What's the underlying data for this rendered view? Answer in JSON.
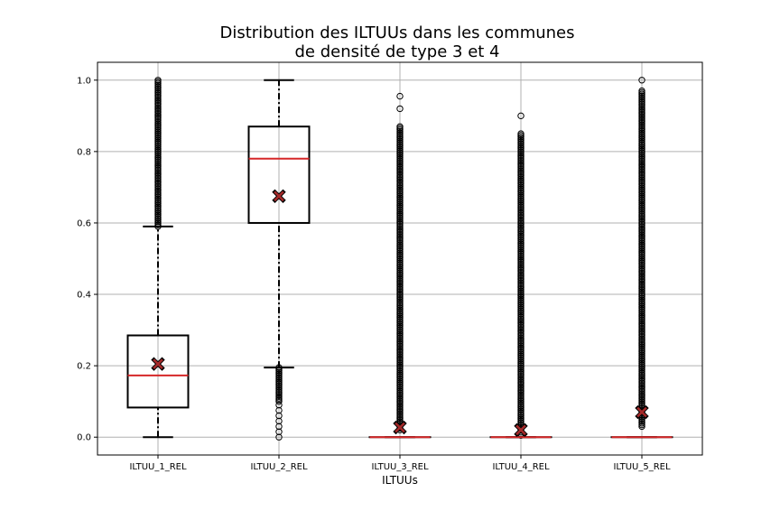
{
  "chart_data": {
    "type": "box",
    "title_lines": [
      "Distribution des ILTUUs dans les communes",
      "de densité de type 3 et 4"
    ],
    "xlabel": "ILTUUs",
    "ylabel": "",
    "categories": [
      "ILTUU_1_REL",
      "ILTUU_2_REL",
      "ILTUU_3_REL",
      "ILTUU_4_REL",
      "ILTUU_5_REL"
    ],
    "ylim": [
      -0.05,
      1.05
    ],
    "yticks": [
      0.0,
      0.2,
      0.4,
      0.6,
      0.8,
      1.0
    ],
    "ytick_labels": [
      "0.0",
      "0.2",
      "0.4",
      "0.6",
      "0.8",
      "1.0"
    ],
    "grid": true,
    "colors": {
      "box": "#000000",
      "median": "#d62728",
      "mean_marker": "#a52a2a",
      "grid": "#b0b0b0"
    },
    "boxes": [
      {
        "name": "ILTUU_1_REL",
        "q1": 0.083,
        "median": 0.173,
        "q3": 0.285,
        "whisker_low": 0.0,
        "whisker_high": 0.59,
        "mean": 0.205,
        "outliers": {
          "dense_range": [
            0.59,
            1.0
          ],
          "sparse": []
        }
      },
      {
        "name": "ILTUU_2_REL",
        "q1": 0.6,
        "median": 0.78,
        "q3": 0.87,
        "whisker_low": 0.195,
        "whisker_high": 1.0,
        "mean": 0.675,
        "outliers": {
          "dense_range": [
            0.1,
            0.195
          ],
          "sparse": [
            0.0,
            0.015,
            0.03,
            0.045,
            0.06,
            0.075,
            0.09
          ]
        }
      },
      {
        "name": "ILTUU_3_REL",
        "q1": 0.0,
        "median": 0.0,
        "q3": 0.0,
        "whisker_low": 0.0,
        "whisker_high": 0.0,
        "mean": 0.027,
        "outliers": {
          "dense_range": [
            0.02,
            0.87
          ],
          "sparse": [
            0.92,
            0.955
          ]
        }
      },
      {
        "name": "ILTUU_4_REL",
        "q1": 0.0,
        "median": 0.0,
        "q3": 0.0,
        "whisker_low": 0.0,
        "whisker_high": 0.0,
        "mean": 0.02,
        "outliers": {
          "dense_range": [
            0.005,
            0.85
          ],
          "sparse": [
            0.9
          ]
        }
      },
      {
        "name": "ILTUU_5_REL",
        "q1": 0.0,
        "median": 0.0,
        "q3": 0.0,
        "whisker_low": 0.0,
        "whisker_high": 0.0,
        "mean": 0.07,
        "outliers": {
          "dense_range": [
            0.03,
            0.97
          ],
          "sparse": [
            1.0
          ]
        }
      }
    ]
  }
}
